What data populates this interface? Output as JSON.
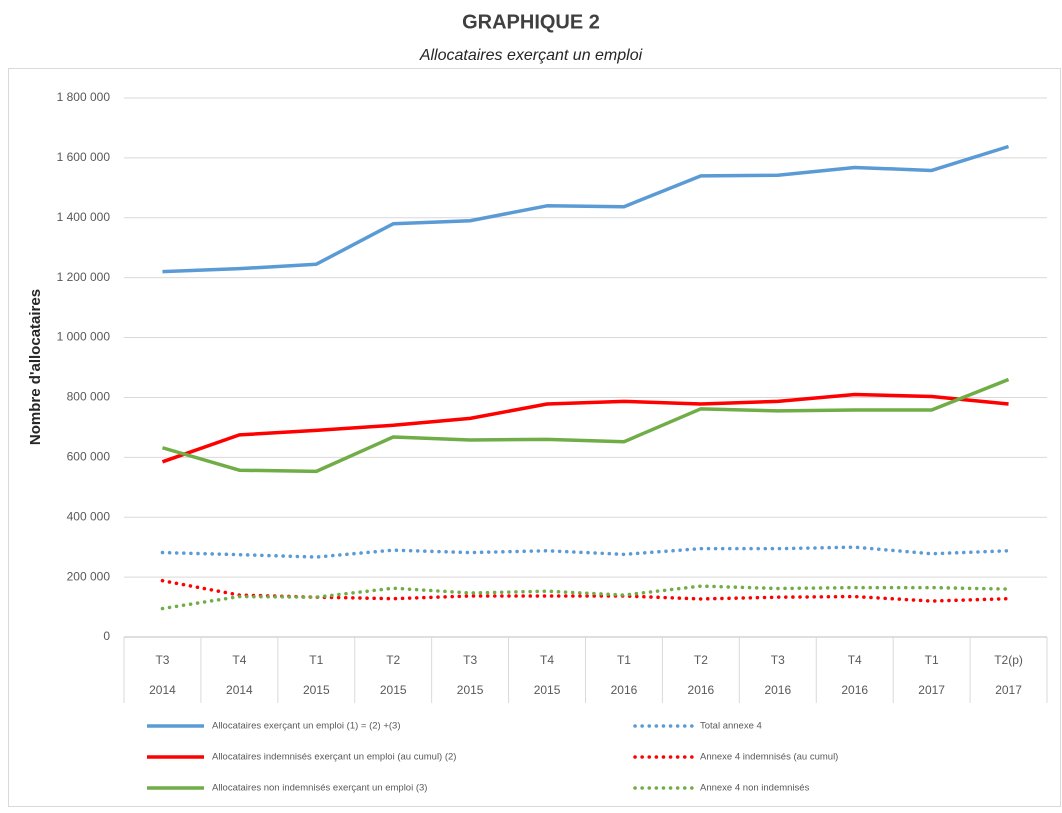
{
  "chart_data": {
    "type": "line",
    "title": "GRAPHIQUE 2",
    "subtitle": "Allocataires exerçant un emploi",
    "y_label": "Nombre d'allocataires",
    "categories": [
      "T3",
      "T4",
      "T1",
      "T2",
      "T3",
      "T4",
      "T1",
      "T2",
      "T3",
      "T4",
      "T1",
      "T2(p)"
    ],
    "category_years": [
      "2014",
      "2014",
      "2015",
      "2015",
      "2015",
      "2015",
      "2016",
      "2016",
      "2016",
      "2016",
      "2017",
      "2017"
    ],
    "ylim": [
      0,
      1800000
    ],
    "yticks": [
      0,
      {
        "value": 200000,
        "label": "200 000"
      },
      {
        "value": 400000,
        "label": "400 000"
      },
      {
        "value": 600000,
        "label": "600 000"
      },
      {
        "value": 800000,
        "label": "800 000"
      },
      {
        "value": 1000000,
        "label": "1 000 000"
      },
      {
        "value": 1200000,
        "label": "1 200 000"
      },
      {
        "value": 1400000,
        "label": "1 400 000"
      },
      {
        "value": 1600000,
        "label": "1 600 000"
      },
      {
        "value": 1800000,
        "label": "1 800 000"
      }
    ],
    "grid": true,
    "series": [
      {
        "name": "Allocataires exerçant un emploi (1) = (2) +(3)",
        "color": "#5b9bd5",
        "line_style": "solid",
        "values": [
          1220000,
          1230000,
          1245000,
          1380000,
          1390000,
          1440000,
          1437000,
          1540000,
          1542000,
          1568000,
          1558000,
          1638000
        ]
      },
      {
        "name": "Allocataires indemnisés exerçant un emploi (au cumul) (2)",
        "color": "#ff0000",
        "line_style": "solid",
        "values": [
          585000,
          675000,
          690000,
          707000,
          730000,
          778000,
          787000,
          778000,
          787000,
          810000,
          803000,
          778000
        ]
      },
      {
        "name": "Allocataires non indemnisés exerçant un emploi (3)",
        "color": "#70ad47",
        "line_style": "solid",
        "values": [
          632000,
          557000,
          553000,
          668000,
          658000,
          660000,
          652000,
          762000,
          755000,
          758000,
          758000,
          860000
        ]
      },
      {
        "name": "Total annexe 4",
        "color": "#5b9bd5",
        "line_style": "dotted",
        "values": [
          282000,
          275000,
          267000,
          290000,
          282000,
          288000,
          276000,
          295000,
          295000,
          300000,
          278000,
          288000
        ]
      },
      {
        "name": "Annexe 4 indemnisés (au cumul)",
        "color": "#ff0000",
        "line_style": "dotted",
        "values": [
          188000,
          140000,
          133000,
          128000,
          137000,
          137000,
          137000,
          127000,
          133000,
          135000,
          120000,
          128000
        ]
      },
      {
        "name": "Annexe 4 non indemnisés",
        "color": "#70ad47",
        "line_style": "dotted",
        "values": [
          95000,
          135000,
          133000,
          163000,
          147000,
          153000,
          140000,
          170000,
          162000,
          165000,
          165000,
          160000
        ]
      }
    ]
  }
}
